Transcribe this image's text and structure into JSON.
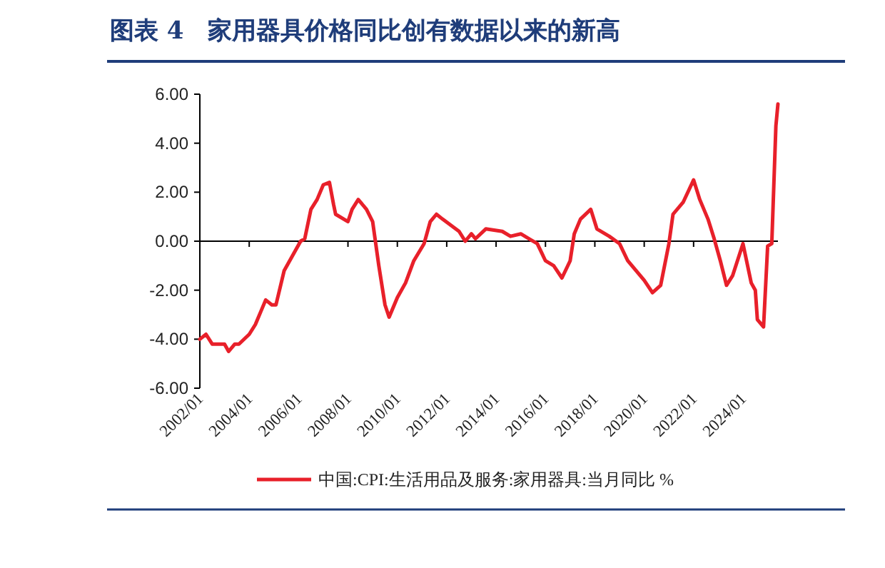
{
  "chart_data": {
    "type": "line",
    "title": "图表 4　家用器具价格同比创有数据以来的新高",
    "x": [
      "2002-01",
      "2002-04",
      "2002-07",
      "2003-01",
      "2003-03",
      "2003-06",
      "2003-08",
      "2004-01",
      "2004-04",
      "2004-07",
      "2004-09",
      "2004-12",
      "2005-02",
      "2005-06",
      "2005-12",
      "2006-02",
      "2006-04",
      "2006-07",
      "2006-10",
      "2007-01",
      "2007-04",
      "2007-06",
      "2007-07",
      "2008-01",
      "2008-03",
      "2008-06",
      "2008-10",
      "2009-01",
      "2009-04",
      "2009-07",
      "2009-09",
      "2010-01",
      "2010-05",
      "2010-09",
      "2011-02",
      "2011-05",
      "2011-08",
      "2011-11",
      "2012-07",
      "2012-10",
      "2013-01",
      "2013-03",
      "2013-08",
      "2014-04",
      "2014-08",
      "2015-01",
      "2015-05",
      "2015-09",
      "2016-01",
      "2016-05",
      "2016-09",
      "2017-01",
      "2017-03",
      "2017-06",
      "2017-11",
      "2018-02",
      "2018-08",
      "2019-01",
      "2019-05",
      "2020-01",
      "2020-05",
      "2020-09",
      "2021-01",
      "2021-03",
      "2021-08",
      "2022-01",
      "2022-04",
      "2022-08",
      "2022-11",
      "2023-02",
      "2023-05",
      "2023-08",
      "2024-01",
      "2024-02",
      "2024-05",
      "2024-07",
      "2024-08",
      "2024-11",
      "2025-01",
      "2025-03",
      "2025-05",
      "2025-06"
    ],
    "series": [
      {
        "name": "中国:CPI:生活用品及服务:家用器具:当月同比 %",
        "color": "#e8202a",
        "values": [
          -4.0,
          -3.8,
          -4.2,
          -4.2,
          -4.5,
          -4.2,
          -4.2,
          -3.8,
          -3.4,
          -2.8,
          -2.4,
          -2.6,
          -2.6,
          -1.2,
          -0.3,
          0.0,
          0.1,
          1.3,
          1.7,
          2.3,
          2.4,
          1.5,
          1.1,
          0.8,
          1.3,
          1.7,
          1.3,
          0.8,
          -1.0,
          -2.6,
          -3.1,
          -2.3,
          -1.7,
          -0.8,
          -0.1,
          0.8,
          1.1,
          0.9,
          0.4,
          0.0,
          0.3,
          0.1,
          0.5,
          0.4,
          0.2,
          0.3,
          0.1,
          -0.1,
          -0.8,
          -1.0,
          -1.5,
          -0.8,
          0.3,
          0.9,
          1.3,
          0.5,
          0.2,
          -0.1,
          -0.8,
          -1.6,
          -2.1,
          -1.8,
          -0.1,
          1.1,
          1.6,
          2.5,
          1.7,
          0.9,
          0.1,
          -0.8,
          -1.8,
          -1.4,
          -0.1,
          -0.5,
          -1.7,
          -2.0,
          -3.2,
          -3.5,
          -0.2,
          -0.1,
          4.7,
          5.6
        ]
      }
    ],
    "xlim": [
      "2002-01",
      "2025-06"
    ],
    "xticks": [
      {
        "value": "2002-01",
        "label": "2002/01"
      },
      {
        "value": "2004-01",
        "label": "2004/01"
      },
      {
        "value": "2006-01",
        "label": "2006/01"
      },
      {
        "value": "2008-01",
        "label": "2008/01"
      },
      {
        "value": "2010-01",
        "label": "2010/01"
      },
      {
        "value": "2012-01",
        "label": "2012/01"
      },
      {
        "value": "2014-01",
        "label": "2014/01"
      },
      {
        "value": "2016-01",
        "label": "2016/01"
      },
      {
        "value": "2018-01",
        "label": "2018/01"
      },
      {
        "value": "2020-01",
        "label": "2020/01"
      },
      {
        "value": "2022-01",
        "label": "2022/01"
      },
      {
        "value": "2024-01",
        "label": "2024/01"
      }
    ],
    "ylim": [
      -6,
      6
    ],
    "yticks": [
      {
        "value": 6,
        "label": "6.00"
      },
      {
        "value": 4,
        "label": "4.00"
      },
      {
        "value": 2,
        "label": "2.00"
      },
      {
        "value": 0,
        "label": "0.00"
      },
      {
        "value": -2,
        "label": "-2.00"
      },
      {
        "value": -4,
        "label": "-4.00"
      },
      {
        "value": -6,
        "label": "-6.00"
      }
    ],
    "legend": "bottom"
  }
}
